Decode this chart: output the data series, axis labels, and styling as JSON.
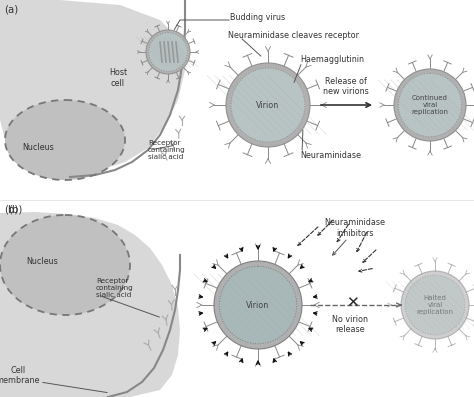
{
  "bg_color": "#ffffff",
  "cell_light": "#d8d8d8",
  "cell_mid": "#c8c8c8",
  "nucleus_fill": "#c0c0c0",
  "virion_outer_fill": "#b0b0b0",
  "virion_ring": "#909090",
  "virion_inner": "#b8c4c4",
  "spike_col": "#888888",
  "dark_arrow": "#222222",
  "mid_arrow": "#555555",
  "label_fs": 5.8,
  "small_fs": 5.2,
  "panel_a": "(a)",
  "panel_b": "(b)",
  "host_cell": "Host\ncell",
  "nucleus_a": "Nucleus",
  "nucleus_b": "Nucleus",
  "receptor_a": "Receptor\ncontaining\nsialic acid",
  "receptor_b": "Receptor\ncontaining\nsialic acid",
  "budding_virus": "Budding virus",
  "cleaves": "Neuraminidase cleaves receptor",
  "haemagglutinin": "Haemagglutinin",
  "virion_a": "Virion",
  "neuraminidase": "Neuraminidase",
  "release": "Release of\nnew virions",
  "continued": "Continued\nviral\nreplication",
  "cell_membrane": "Cell\nmembrane",
  "virion_b": "Virion",
  "inhibitors": "Neuraminidase\ninhibitors",
  "no_virion": "No virion\nrelease",
  "halted": "Halted\nviral\nreplication"
}
